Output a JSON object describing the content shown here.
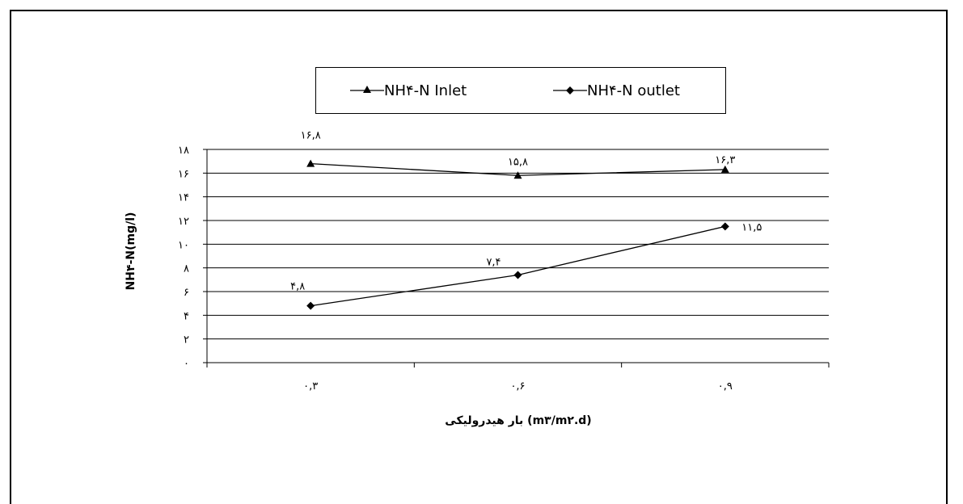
{
  "chart_data": {
    "type": "line",
    "categories": [
      "۰,۳",
      "۰,۶",
      "۰,۹"
    ],
    "x": [
      0.3,
      0.6,
      0.9
    ],
    "ylabel": "NH۴-N(mg/l)",
    "xlabel": "بار هیدرولیکی  (m۳/m۲.d)",
    "ylim": [
      0,
      18
    ],
    "yticks": [
      0,
      2,
      4,
      6,
      8,
      10,
      12,
      14,
      16,
      18
    ],
    "ytick_labels": [
      "۰",
      "۲",
      "۴",
      "۶",
      "۸",
      "۱۰",
      "۱۲",
      "۱۴",
      "۱۶",
      "۱۸"
    ],
    "grid": true,
    "legend_position": "top",
    "series": [
      {
        "name": "NH۴-N Inlet",
        "marker": "triangle",
        "color": "#000000",
        "values": [
          16.8,
          15.8,
          16.3
        ],
        "data_labels": [
          "۱۶,۸",
          "۱۵,۸",
          "۱۶,۳"
        ]
      },
      {
        "name": "NH۴-N outlet",
        "marker": "diamond",
        "color": "#000000",
        "values": [
          4.8,
          7.4,
          11.5
        ],
        "data_labels": [
          "۴,۸",
          "۷,۴",
          "۱۱,۵"
        ]
      }
    ]
  }
}
